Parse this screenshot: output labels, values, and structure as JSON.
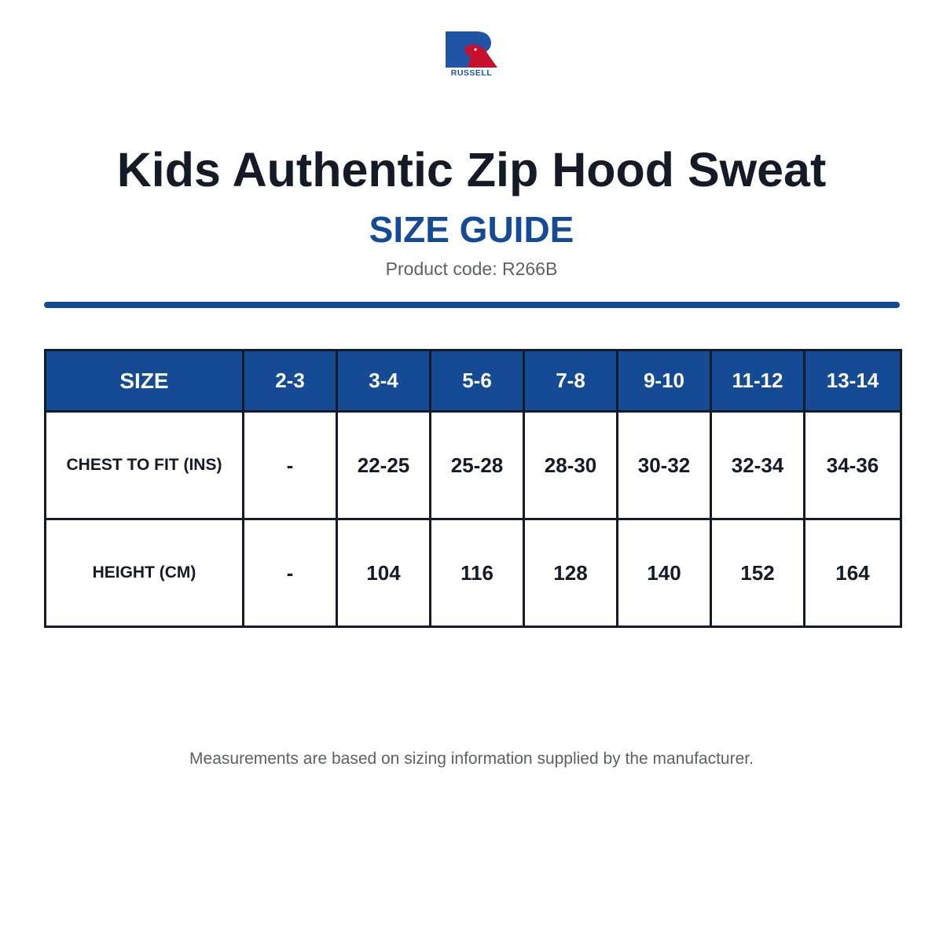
{
  "brand": {
    "name": "RUSSELL",
    "primary_color": "#1f54a6",
    "accent_color": "#c8102e"
  },
  "header": {
    "title": "Kids Authentic Zip Hood Sweat",
    "subtitle": "SIZE GUIDE",
    "product_code": "Product code: R266B"
  },
  "size_table": {
    "header_label": "SIZE",
    "sizes": [
      "2-3",
      "3-4",
      "5-6",
      "7-8",
      "9-10",
      "11-12",
      "13-14"
    ],
    "rows": [
      {
        "label": "CHEST TO FIT (INS)",
        "values": [
          "-",
          "22-25",
          "25-28",
          "28-30",
          "30-32",
          "32-34",
          "34-36"
        ]
      },
      {
        "label": "HEIGHT (CM)",
        "values": [
          "-",
          "104",
          "116",
          "128",
          "140",
          "152",
          "164"
        ]
      }
    ]
  },
  "footnote": "Measurements are based on sizing information supplied by the manufacturer.",
  "colors": {
    "header_blue": "#144b94",
    "text_dark": "#141b26",
    "text_gray": "#5f6066"
  }
}
